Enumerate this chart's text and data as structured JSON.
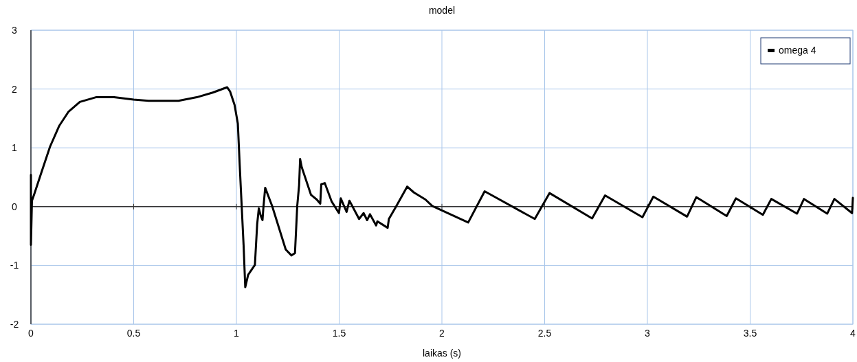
{
  "chart_data": {
    "type": "line",
    "title": "model",
    "xlabel": "laikas (s)",
    "xlim": [
      0,
      4
    ],
    "xticks": [
      0,
      0.5,
      1,
      1.5,
      2,
      2.5,
      3,
      3.5,
      4
    ],
    "ylim": [
      -2,
      3
    ],
    "yticks": [
      -2,
      -1,
      0,
      1,
      2,
      3
    ],
    "grid": true,
    "legend": "top right",
    "marker": "none",
    "line_style": "solid",
    "series": [
      {
        "name": "omega 4",
        "color": "#000000",
        "x": [
          0,
          0,
          0.005,
          0.015,
          0.048,
          0.093,
          0.137,
          0.182,
          0.238,
          0.316,
          0.405,
          0.5,
          0.573,
          0.718,
          0.807,
          0.885,
          0.955,
          0.969,
          0.991,
          1.007,
          1.016,
          1.023,
          1.035,
          1.043,
          1.057,
          1.09,
          1.101,
          1.109,
          1.118,
          1.127,
          1.131,
          1.14,
          1.174,
          1.24,
          1.268,
          1.285,
          1.296,
          1.305,
          1.31,
          1.318,
          1.363,
          1.391,
          1.408,
          1.413,
          1.43,
          1.463,
          1.499,
          1.508,
          1.536,
          1.55,
          1.597,
          1.619,
          1.636,
          1.65,
          1.68,
          1.686,
          1.736,
          1.742,
          1.775,
          1.831,
          1.864,
          1.92,
          1.953,
          2.128,
          2.208,
          2.452,
          2.524,
          2.731,
          2.794,
          2.976,
          3.029,
          3.193,
          3.238,
          3.386,
          3.431,
          3.562,
          3.603,
          3.728,
          3.762,
          3.875,
          3.91,
          3.996,
          4
        ],
        "values": [
          0.54,
          -0.65,
          0.1,
          0.2,
          0.55,
          1.02,
          1.37,
          1.61,
          1.78,
          1.86,
          1.86,
          1.82,
          1.8,
          1.8,
          1.86,
          1.94,
          2.03,
          1.96,
          1.73,
          1.41,
          0.71,
          0.2,
          -0.66,
          -1.37,
          -1.16,
          -0.99,
          -0.3,
          -0.03,
          -0.15,
          -0.23,
          -0.03,
          0.32,
          0.01,
          -0.73,
          -0.83,
          -0.79,
          0.01,
          0.36,
          0.81,
          0.67,
          0.2,
          0.12,
          0.05,
          0.38,
          0.4,
          0.09,
          -0.11,
          0.14,
          -0.09,
          0.1,
          -0.21,
          -0.11,
          -0.23,
          -0.13,
          -0.32,
          -0.25,
          -0.36,
          -0.21,
          -0.01,
          0.34,
          0.24,
          0.12,
          0.01,
          -0.27,
          0.26,
          -0.21,
          0.23,
          -0.2,
          0.19,
          -0.18,
          0.17,
          -0.17,
          0.16,
          -0.16,
          0.14,
          -0.14,
          0.13,
          -0.12,
          0.13,
          -0.12,
          0.13,
          -0.11,
          0.15
        ]
      }
    ]
  }
}
